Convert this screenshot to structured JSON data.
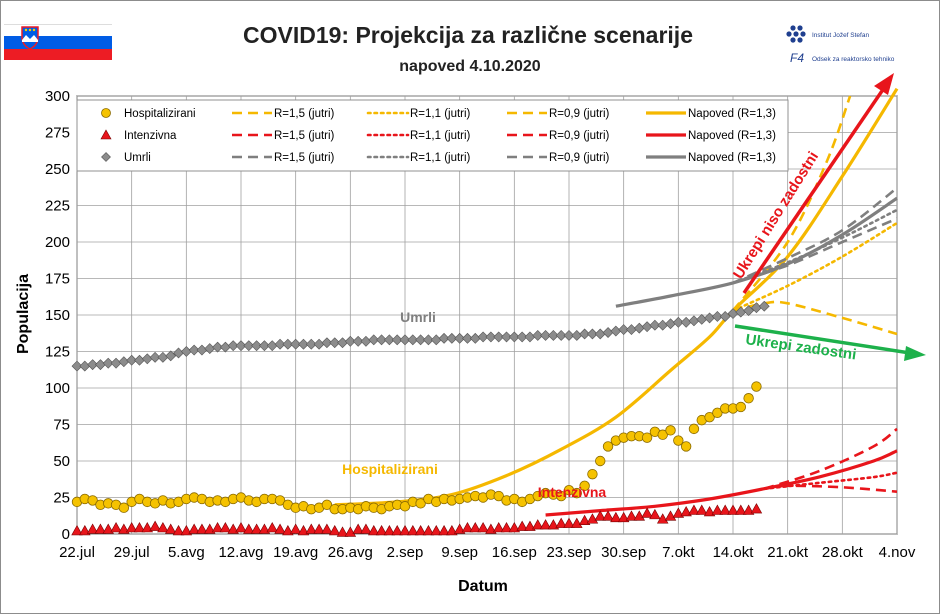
{
  "header": {
    "title": "COVID19: Projekcija za različne scenarije",
    "subtitle": "napoved 4.10.2020",
    "institute1": "Institut Jožef Stefan",
    "institute2": "Odsek za reaktorsko tehniko",
    "institute2_logo": "F4"
  },
  "colors": {
    "hospitalized": "#f5b800",
    "intensive": "#e8151b",
    "deaths": "#7f7f7f",
    "green_arrow": "#1db14b",
    "flag_white": "#ffffff",
    "flag_blue": "#005ce5",
    "flag_red": "#ed1c24"
  },
  "chart_data": {
    "type": "line",
    "title": "COVID19: Projekcija za različne scenarije",
    "subtitle": "napoved 4.10.2020",
    "xlabel": "Datum",
    "ylabel": "Populacija",
    "ylim": [
      0,
      300
    ],
    "yticks": [
      0,
      25,
      50,
      75,
      100,
      125,
      150,
      175,
      200,
      225,
      250,
      275,
      300
    ],
    "xlim": [
      "2020-07-22",
      "2020-11-04"
    ],
    "xticks": [
      {
        "date": "2020-07-22",
        "label": "22.jul"
      },
      {
        "date": "2020-07-29",
        "label": "29.jul"
      },
      {
        "date": "2020-08-05",
        "label": "5.avg"
      },
      {
        "date": "2020-08-12",
        "label": "12.avg"
      },
      {
        "date": "2020-08-19",
        "label": "19.avg"
      },
      {
        "date": "2020-08-26",
        "label": "26.avg"
      },
      {
        "date": "2020-09-02",
        "label": "2.sep"
      },
      {
        "date": "2020-09-09",
        "label": "9.sep"
      },
      {
        "date": "2020-09-16",
        "label": "16.sep"
      },
      {
        "date": "2020-09-23",
        "label": "23.sep"
      },
      {
        "date": "2020-09-30",
        "label": "30.sep"
      },
      {
        "date": "2020-10-07",
        "label": "7.okt"
      },
      {
        "date": "2020-10-14",
        "label": "14.okt"
      },
      {
        "date": "2020-10-21",
        "label": "21.okt"
      },
      {
        "date": "2020-10-28",
        "label": "28.okt"
      },
      {
        "date": "2020-11-04",
        "label": "4.nov"
      }
    ],
    "grid": true,
    "legend_position": "top-left",
    "legend": [
      [
        "Hospitalizirani",
        "R=1,5 (jutri)",
        "R=1,1 (jutri)",
        "R=0,9 (jutri)",
        "Napoved (R=1,3)"
      ],
      [
        "Intenzivna",
        "R=1,5 (jutri)",
        "R=1,1 (jutri)",
        "R=0,9 (jutri)",
        "Napoved (R=1,3)"
      ],
      [
        "Umrli",
        "R=1,5 (jutri)",
        "R=1,1 (jutri)",
        "R=0,9 (jutri)",
        "Napoved (R=1,3)"
      ]
    ],
    "annotations": {
      "umrli": "Umrli",
      "hospitalizirani": "Hospitalizirani",
      "intenzivna": "Intenzivna",
      "ukrepi_niso": "Ukrepi niso zadostni",
      "ukrepi_zadostni": "Ukrepi zadostni"
    },
    "observed": {
      "start_date": "2020-07-22",
      "hospitalizirani": [
        22,
        24,
        23,
        20,
        21,
        20,
        18,
        22,
        24,
        22,
        21,
        23,
        21,
        22,
        24,
        25,
        24,
        22,
        23,
        22,
        24,
        25,
        23,
        22,
        24,
        24,
        23,
        20,
        18,
        19,
        17,
        18,
        20,
        17,
        17,
        18,
        17,
        19,
        18,
        17,
        19,
        20,
        19,
        22,
        21,
        24,
        22,
        24,
        23,
        24,
        25,
        26,
        25,
        27,
        26,
        23,
        24,
        22,
        24,
        26,
        28,
        27,
        26,
        30,
        28,
        33,
        41,
        50,
        60,
        64,
        66,
        67,
        67,
        66,
        70,
        68,
        71,
        64,
        60,
        72,
        78,
        80,
        83,
        86,
        86,
        87,
        93,
        101
      ],
      "intenzivna": [
        2,
        2,
        3,
        3,
        3,
        4,
        3,
        4,
        4,
        4,
        5,
        4,
        3,
        2,
        2,
        3,
        3,
        3,
        4,
        4,
        3,
        4,
        3,
        3,
        3,
        4,
        3,
        2,
        3,
        2,
        3,
        3,
        3,
        2,
        1,
        1,
        3,
        3,
        2,
        2,
        2,
        2,
        2,
        2,
        2,
        2,
        2,
        2,
        2,
        3,
        4,
        4,
        4,
        3,
        4,
        4,
        4,
        5,
        5,
        6,
        6,
        6,
        7,
        7,
        7,
        9,
        10,
        12,
        12,
        11,
        11,
        12,
        12,
        14,
        13,
        10,
        12,
        14,
        15,
        16,
        16,
        15,
        16,
        16,
        16,
        16,
        16,
        17
      ],
      "umrli": [
        115,
        115,
        116,
        116,
        117,
        117,
        118,
        119,
        119,
        120,
        121,
        121,
        122,
        124,
        125,
        126,
        126,
        127,
        128,
        128,
        129,
        129,
        129,
        129,
        129,
        129,
        130,
        130,
        130,
        130,
        130,
        130,
        131,
        131,
        131,
        132,
        132,
        132,
        133,
        133,
        133,
        133,
        133,
        133,
        133,
        133,
        133,
        134,
        134,
        134,
        134,
        134,
        135,
        135,
        135,
        135,
        135,
        135,
        135,
        136,
        136,
        136,
        136,
        136,
        136,
        137,
        137,
        137,
        138,
        139,
        140,
        140,
        141,
        142,
        143,
        143,
        144,
        145,
        145,
        146,
        147,
        148,
        149,
        149,
        151,
        152,
        153,
        155,
        156
      ]
    },
    "series": [
      {
        "name": "Napoved (R=1,3)",
        "group": "Hospitalizirani",
        "style": "solid",
        "points": [
          [
            "2020-08-24",
            20
          ],
          [
            "2020-09-01",
            22
          ],
          [
            "2020-09-08",
            27
          ],
          [
            "2020-09-15",
            40
          ],
          [
            "2020-09-22",
            58
          ],
          [
            "2020-09-29",
            80
          ],
          [
            "2020-10-06",
            112
          ],
          [
            "2020-10-11",
            135
          ],
          [
            "2020-10-14",
            153
          ],
          [
            "2020-10-21",
            190
          ],
          [
            "2020-10-28",
            245
          ],
          [
            "2020-11-04",
            305
          ]
        ]
      },
      {
        "name": "R=1,5 (jutri)",
        "group": "Hospitalizirani",
        "style": "dash",
        "points": [
          [
            "2020-10-14",
            153
          ],
          [
            "2020-10-21",
            200
          ],
          [
            "2020-10-26",
            255
          ],
          [
            "2020-10-29",
            300
          ]
        ]
      },
      {
        "name": "R=1,1 (jutri)",
        "group": "Hospitalizirani",
        "style": "dot",
        "points": [
          [
            "2020-10-14",
            153
          ],
          [
            "2020-10-21",
            170
          ],
          [
            "2020-10-28",
            190
          ],
          [
            "2020-11-04",
            213
          ]
        ]
      },
      {
        "name": "R=0,9 (jutri)",
        "group": "Hospitalizirani",
        "style": "dash",
        "points": [
          [
            "2020-10-14",
            153
          ],
          [
            "2020-10-18",
            158
          ],
          [
            "2020-10-21",
            158
          ],
          [
            "2020-10-28",
            148
          ],
          [
            "2020-11-04",
            137
          ]
        ]
      },
      {
        "name": "Napoved (R=1,3)",
        "group": "Intenzivna",
        "style": "solid",
        "points": [
          [
            "2020-09-20",
            13
          ],
          [
            "2020-09-27",
            16
          ],
          [
            "2020-10-04",
            19
          ],
          [
            "2020-10-11",
            24
          ],
          [
            "2020-10-18",
            31
          ],
          [
            "2020-10-25",
            39
          ],
          [
            "2020-11-01",
            50
          ],
          [
            "2020-11-04",
            57
          ]
        ]
      },
      {
        "name": "R=1,5 (jutri)",
        "group": "Intenzivna",
        "style": "dash",
        "points": [
          [
            "2020-10-18",
            31
          ],
          [
            "2020-10-25",
            43
          ],
          [
            "2020-11-01",
            60
          ],
          [
            "2020-11-04",
            72
          ]
        ]
      },
      {
        "name": "R=1,1 (jutri)",
        "group": "Intenzivna",
        "style": "dot",
        "points": [
          [
            "2020-10-18",
            31
          ],
          [
            "2020-10-25",
            35
          ],
          [
            "2020-11-01",
            39
          ],
          [
            "2020-11-04",
            42
          ]
        ]
      },
      {
        "name": "R=0,9 (jutri)",
        "group": "Intenzivna",
        "style": "dash",
        "points": [
          [
            "2020-10-18",
            31
          ],
          [
            "2020-10-21",
            33
          ],
          [
            "2020-10-28",
            32
          ],
          [
            "2020-11-04",
            29
          ]
        ]
      },
      {
        "name": "Napoved (R=1,3)",
        "group": "Umrli",
        "style": "solid",
        "points": [
          [
            "2020-09-29",
            156
          ],
          [
            "2020-10-06",
            163
          ],
          [
            "2020-10-14",
            172
          ],
          [
            "2020-10-21",
            185
          ],
          [
            "2020-10-28",
            205
          ],
          [
            "2020-11-04",
            230
          ]
        ]
      },
      {
        "name": "R=1,5 (jutri)",
        "group": "Umrli",
        "style": "dash",
        "points": [
          [
            "2020-10-14",
            172
          ],
          [
            "2020-10-21",
            189
          ],
          [
            "2020-10-28",
            208
          ],
          [
            "2020-11-04",
            237
          ]
        ]
      },
      {
        "name": "R=1,1 (jutri)",
        "group": "Umrli",
        "style": "dot",
        "points": [
          [
            "2020-10-14",
            172
          ],
          [
            "2020-10-21",
            186
          ],
          [
            "2020-10-28",
            203
          ],
          [
            "2020-11-04",
            222
          ]
        ]
      },
      {
        "name": "R=0,9 (jutri)",
        "group": "Umrli",
        "style": "dash",
        "points": [
          [
            "2020-10-14",
            172
          ],
          [
            "2020-10-21",
            184
          ],
          [
            "2020-10-28",
            200
          ],
          [
            "2020-11-04",
            216
          ]
        ]
      }
    ]
  }
}
